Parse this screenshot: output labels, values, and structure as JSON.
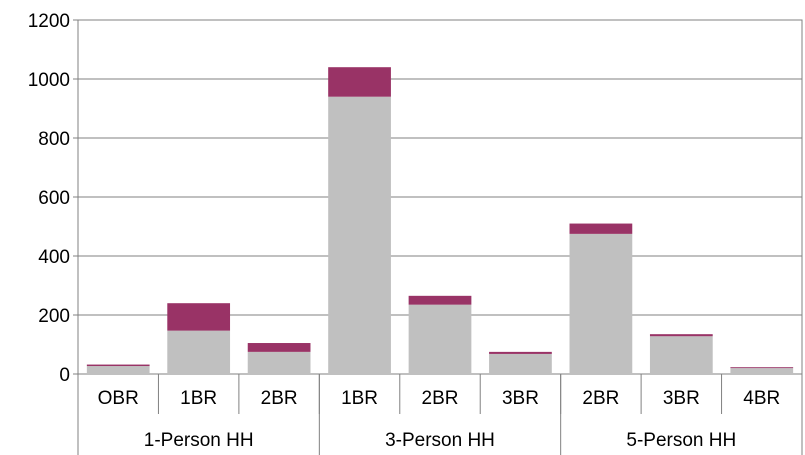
{
  "chart_data": {
    "type": "bar",
    "stacked": true,
    "groups": [
      {
        "label": "1-Person HH",
        "categories": [
          "OBR",
          "1BR",
          "2BR"
        ]
      },
      {
        "label": "3-Person HH",
        "categories": [
          "1BR",
          "2BR",
          "3BR"
        ]
      },
      {
        "label": "5-Person HH",
        "categories": [
          "2BR",
          "3BR",
          "4BR"
        ]
      }
    ],
    "categories": [
      "OBR",
      "1BR",
      "2BR",
      "1BR",
      "2BR",
      "3BR",
      "2BR",
      "3BR",
      "4BR"
    ],
    "series": [
      {
        "values": [
          27,
          147,
          75,
          940,
          235,
          68,
          475,
          128,
          20
        ]
      },
      {
        "values": [
          5,
          93,
          30,
          100,
          30,
          7,
          35,
          7,
          3
        ]
      }
    ],
    "ylim": [
      0,
      1200
    ],
    "yticks": [
      0,
      200,
      400,
      600,
      800,
      1000,
      1200
    ],
    "ytick_labels": [
      "0",
      "200",
      "400",
      "600",
      "800",
      "1000",
      "1200"
    ],
    "grid": true,
    "colors": {
      "series_base": "#c0c0c0",
      "series_top": "#993366",
      "grid": "#808080",
      "axis": "#808080",
      "plot_background": "#ffffff",
      "plot_border": "#808080"
    }
  }
}
